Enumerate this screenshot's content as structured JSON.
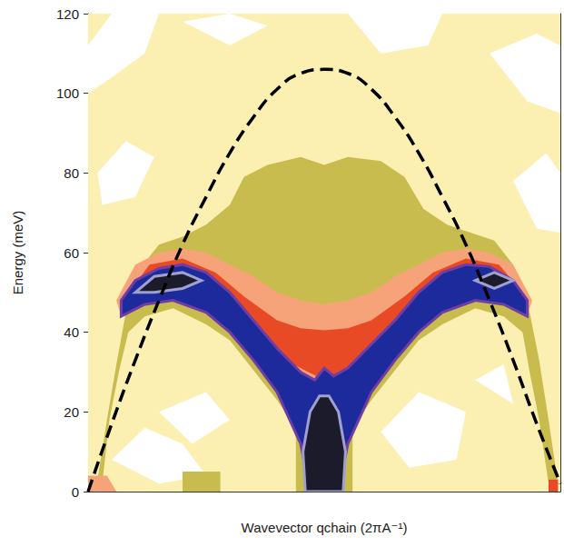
{
  "chart_data": {
    "type": "contour",
    "x_label": "Wavevector qchain (2πA⁻¹)",
    "y_label": "Energy (meV)",
    "xlim": [
      0,
      1
    ],
    "xticks": [],
    "ylim": [
      0,
      120
    ],
    "yticks": [
      0,
      20,
      40,
      60,
      80,
      100,
      120
    ],
    "grid": false,
    "tick_labels": "y",
    "regions": [
      {
        "color": "#fcefb2",
        "polygons": [
          [
            [
              0,
              0
            ],
            [
              0,
              120
            ],
            [
              1,
              120
            ],
            [
              1,
              0
            ]
          ]
        ]
      },
      {
        "color": "#ffffff",
        "polygons": [
          [
            [
              0.0,
              112
            ],
            [
              0.05,
              120
            ],
            [
              0.15,
              120
            ],
            [
              0.12,
              110
            ],
            [
              0.05,
              104
            ],
            [
              0.0,
              100
            ]
          ],
          [
            [
              0.2,
              118
            ],
            [
              0.3,
              120
            ],
            [
              0.38,
              117
            ],
            [
              0.3,
              112
            ]
          ],
          [
            [
              0.55,
              120
            ],
            [
              0.75,
              120
            ],
            [
              0.72,
              112
            ],
            [
              0.62,
              110
            ]
          ],
          [
            [
              0.85,
              110
            ],
            [
              0.95,
              115
            ],
            [
              1.0,
              112
            ],
            [
              1.0,
              95
            ],
            [
              0.93,
              98
            ]
          ],
          [
            [
              0.02,
              80
            ],
            [
              0.08,
              88
            ],
            [
              0.14,
              84
            ],
            [
              0.1,
              74
            ],
            [
              0.03,
              72
            ]
          ],
          [
            [
              0.9,
              78
            ],
            [
              0.97,
              85
            ],
            [
              1.0,
              80
            ],
            [
              1.0,
              65
            ],
            [
              0.95,
              66
            ]
          ],
          [
            [
              0.05,
              8
            ],
            [
              0.12,
              16
            ],
            [
              0.2,
              12
            ],
            [
              0.25,
              4
            ],
            [
              0.15,
              2
            ]
          ],
          [
            [
              0.15,
              20
            ],
            [
              0.25,
              25
            ],
            [
              0.3,
              18
            ],
            [
              0.22,
              12
            ]
          ],
          [
            [
              0.62,
              15
            ],
            [
              0.7,
              25
            ],
            [
              0.8,
              20
            ],
            [
              0.78,
              8
            ],
            [
              0.68,
              6
            ]
          ],
          [
            [
              0.82,
              28
            ],
            [
              0.88,
              32
            ],
            [
              0.9,
              22
            ]
          ]
        ]
      },
      {
        "color": "#c8bc4e",
        "polygons": [
          [
            [
              0.02,
              3
            ],
            [
              0.04,
              18
            ],
            [
              0.06,
              32
            ],
            [
              0.08,
              45
            ],
            [
              0.11,
              56
            ],
            [
              0.15,
              62
            ],
            [
              0.2,
              64
            ],
            [
              0.25,
              67
            ],
            [
              0.3,
              72
            ],
            [
              0.33,
              79
            ],
            [
              0.38,
              82
            ],
            [
              0.45,
              84
            ],
            [
              0.5,
              82
            ],
            [
              0.55,
              84
            ],
            [
              0.62,
              83
            ],
            [
              0.67,
              79
            ],
            [
              0.71,
              71
            ],
            [
              0.76,
              67
            ],
            [
              0.81,
              65
            ],
            [
              0.86,
              63
            ],
            [
              0.9,
              57
            ],
            [
              0.93,
              48
            ],
            [
              0.955,
              33
            ],
            [
              0.975,
              18
            ],
            [
              0.995,
              2
            ],
            [
              0.975,
              2
            ],
            [
              0.955,
              18
            ],
            [
              0.935,
              30
            ],
            [
              0.92,
              40
            ],
            [
              0.88,
              44
            ],
            [
              0.82,
              46
            ],
            [
              0.75,
              42
            ],
            [
              0.7,
              38
            ],
            [
              0.6,
              23
            ],
            [
              0.56,
              16
            ],
            [
              0.56,
              0
            ],
            [
              0.44,
              0
            ],
            [
              0.44,
              16
            ],
            [
              0.4,
              23
            ],
            [
              0.3,
              38
            ],
            [
              0.25,
              42
            ],
            [
              0.18,
              46
            ],
            [
              0.12,
              44
            ],
            [
              0.085,
              40
            ],
            [
              0.065,
              30
            ],
            [
              0.045,
              18
            ],
            [
              0.03,
              2
            ]
          ],
          [
            [
              0.2,
              0
            ],
            [
              0.2,
              5
            ],
            [
              0.28,
              5
            ],
            [
              0.28,
              0
            ]
          ]
        ]
      },
      {
        "color": "#f7a37a",
        "polygons": [
          [
            [
              0.06,
              48
            ],
            [
              0.1,
              57
            ],
            [
              0.15,
              60
            ],
            [
              0.2,
              61
            ],
            [
              0.25,
              60
            ],
            [
              0.3,
              57
            ],
            [
              0.35,
              54
            ],
            [
              0.4,
              50
            ],
            [
              0.45,
              48
            ],
            [
              0.5,
              47
            ],
            [
              0.55,
              48
            ],
            [
              0.6,
              50
            ],
            [
              0.65,
              54
            ],
            [
              0.7,
              57
            ],
            [
              0.75,
              60
            ],
            [
              0.8,
              61
            ],
            [
              0.85,
              60
            ],
            [
              0.9,
              57
            ],
            [
              0.94,
              48
            ],
            [
              0.93,
              44
            ],
            [
              0.8,
              52
            ],
            [
              0.7,
              45
            ],
            [
              0.6,
              33
            ],
            [
              0.5,
              27
            ],
            [
              0.4,
              33
            ],
            [
              0.3,
              45
            ],
            [
              0.2,
              52
            ],
            [
              0.07,
              44
            ]
          ],
          [
            [
              0.0,
              0
            ],
            [
              0.0,
              4
            ],
            [
              0.04,
              4
            ],
            [
              0.06,
              0
            ]
          ]
        ]
      },
      {
        "color": "#e84a26",
        "polygons": [
          [
            [
              0.08,
              49
            ],
            [
              0.13,
              57
            ],
            [
              0.2,
              58.5
            ],
            [
              0.27,
              55
            ],
            [
              0.33,
              49
            ],
            [
              0.4,
              43
            ],
            [
              0.45,
              41
            ],
            [
              0.5,
              40.5
            ],
            [
              0.55,
              41
            ],
            [
              0.6,
              43
            ],
            [
              0.67,
              49
            ],
            [
              0.73,
              55
            ],
            [
              0.8,
              58.5
            ],
            [
              0.87,
              57
            ],
            [
              0.92,
              50
            ],
            [
              0.92,
              46
            ],
            [
              0.8,
              53
            ],
            [
              0.7,
              46
            ],
            [
              0.6,
              34
            ],
            [
              0.5,
              28
            ],
            [
              0.4,
              34
            ],
            [
              0.3,
              46
            ],
            [
              0.2,
              53
            ],
            [
              0.08,
              46
            ]
          ],
          [
            [
              0.975,
              0
            ],
            [
              0.975,
              3
            ],
            [
              0.995,
              3
            ],
            [
              0.995,
              0
            ]
          ]
        ]
      },
      {
        "color": "#1d2a9c",
        "polygons": [
          [
            [
              0.07,
              48
            ],
            [
              0.1,
              53
            ],
            [
              0.15,
              56
            ],
            [
              0.2,
              57
            ],
            [
              0.25,
              55
            ],
            [
              0.3,
              50
            ],
            [
              0.35,
              43
            ],
            [
              0.4,
              36
            ],
            [
              0.45,
              30
            ],
            [
              0.48,
              28
            ],
            [
              0.5,
              31
            ],
            [
              0.52,
              29
            ],
            [
              0.55,
              31
            ],
            [
              0.6,
              37
            ],
            [
              0.65,
              43
            ],
            [
              0.7,
              50
            ],
            [
              0.75,
              55
            ],
            [
              0.8,
              57
            ],
            [
              0.85,
              56.5
            ],
            [
              0.9,
              53
            ],
            [
              0.93,
              48
            ],
            [
              0.93,
              44
            ],
            [
              0.88,
              47
            ],
            [
              0.82,
              48
            ],
            [
              0.75,
              45
            ],
            [
              0.7,
              40
            ],
            [
              0.65,
              33
            ],
            [
              0.6,
              25
            ],
            [
              0.55,
              12
            ],
            [
              0.53,
              0
            ],
            [
              0.47,
              0
            ],
            [
              0.45,
              12
            ],
            [
              0.4,
              25
            ],
            [
              0.35,
              33
            ],
            [
              0.3,
              40
            ],
            [
              0.25,
              45
            ],
            [
              0.18,
              48
            ],
            [
              0.12,
              47
            ],
            [
              0.07,
              44
            ]
          ]
        ]
      },
      {
        "color": "#1b1b2b",
        "polygons": [
          [
            [
              0.46,
              0
            ],
            [
              0.455,
              10
            ],
            [
              0.47,
              20
            ],
            [
              0.49,
              24
            ],
            [
              0.51,
              24
            ],
            [
              0.53,
              20
            ],
            [
              0.545,
              10
            ],
            [
              0.54,
              0
            ]
          ],
          [
            [
              0.1,
              50
            ],
            [
              0.14,
              54
            ],
            [
              0.2,
              55
            ],
            [
              0.24,
              53
            ],
            [
              0.2,
              51
            ],
            [
              0.14,
              50
            ]
          ],
          [
            [
              0.82,
              53
            ],
            [
              0.86,
              55
            ],
            [
              0.9,
              53
            ],
            [
              0.86,
              51
            ]
          ]
        ]
      }
    ],
    "curve": {
      "color": "#000000",
      "line_style": "dashed",
      "x": [
        0,
        0.05,
        0.1,
        0.15,
        0.2,
        0.25,
        0.3,
        0.35,
        0.4,
        0.45,
        0.5,
        0.55,
        0.6,
        0.65,
        0.7,
        0.75,
        0.8,
        0.85,
        0.9,
        0.95,
        1
      ],
      "values": [
        0,
        17,
        33,
        48,
        62,
        74,
        85,
        94,
        101,
        105,
        106,
        105,
        101,
        94,
        85,
        74,
        62,
        48,
        33,
        17,
        2
      ]
    }
  }
}
